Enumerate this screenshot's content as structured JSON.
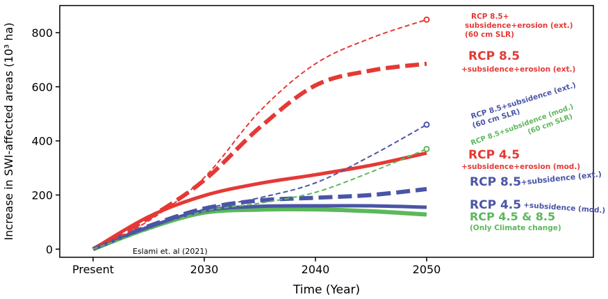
{
  "chart_data": {
    "type": "line",
    "title": "",
    "xlabel": "Time (Year)",
    "ylabel": "Increase in SWI-affected areas (10³ ha)",
    "xlim": [
      2017,
      2065
    ],
    "ylim": [
      -30,
      900
    ],
    "x_ticks": [
      {
        "value": 2020,
        "label": "Present"
      },
      {
        "value": 2030,
        "label": "2030"
      },
      {
        "value": 2040,
        "label": "2040"
      },
      {
        "value": 2050,
        "label": "2050"
      }
    ],
    "y_ticks": [
      {
        "value": 0,
        "label": "0"
      },
      {
        "value": 200,
        "label": "200"
      },
      {
        "value": 400,
        "label": "400"
      },
      {
        "value": 600,
        "label": "600"
      },
      {
        "value": 800,
        "label": "800"
      }
    ],
    "grid": false,
    "colors": {
      "red": "#e53935",
      "blue": "#4a55a6",
      "green": "#5bb85b"
    },
    "annotation": "Eslami et. al (2021)",
    "series": [
      {
        "id": "rcp85-sub-ero-60cm",
        "color": "#e53935",
        "dash": "short",
        "width": 2,
        "x": [
          2020,
          2025,
          2030,
          2035,
          2040,
          2045,
          2050
        ],
        "y": [
          0,
          105,
          265,
          510,
          685,
          780,
          848
        ],
        "label_lines": [
          "RCP 8.5+",
          "subsidence+erosion (ext.)",
          "(60 cm SLR)"
        ]
      },
      {
        "id": "rcp85-sub-ero",
        "color": "#e53935",
        "dash": "long",
        "width": 6,
        "x": [
          2020,
          2025,
          2030,
          2035,
          2040,
          2045,
          2050
        ],
        "y": [
          0,
          115,
          255,
          450,
          605,
          660,
          685
        ],
        "label_lines": [
          "RCP 8.5",
          "+subsidence+erosion (ext.)"
        ]
      },
      {
        "id": "rcp85-sub-60cm",
        "color": "#4a55a6",
        "dash": "short",
        "width": 2,
        "x": [
          2020,
          2025,
          2030,
          2035,
          2040,
          2045,
          2050
        ],
        "y": [
          0,
          75,
          148,
          190,
          245,
          345,
          460
        ],
        "label_lines": [
          "RCP 8.5+subsidence (ext.)",
          "(60 cm SLR)"
        ]
      },
      {
        "id": "rcp85-sub-mod-60cm",
        "color": "#5bb85b",
        "dash": "short",
        "width": 2,
        "x": [
          2020,
          2025,
          2030,
          2035,
          2040,
          2045,
          2050
        ],
        "y": [
          0,
          72,
          140,
          170,
          210,
          285,
          370
        ],
        "label_lines": [
          "RCP 8.5+subsidence (mod.)",
          "(60 cm SLR)"
        ]
      },
      {
        "id": "rcp45-sub-ero",
        "color": "#e53935",
        "dash": "solid",
        "width": 5,
        "x": [
          2020,
          2025,
          2030,
          2035,
          2040,
          2045,
          2050
        ],
        "y": [
          0,
          120,
          198,
          243,
          275,
          310,
          355
        ],
        "label_lines": [
          "RCP 4.5",
          "+subsidence+erosion (mod.)"
        ]
      },
      {
        "id": "rcp85-sub",
        "color": "#4a55a6",
        "dash": "long",
        "width": 6,
        "x": [
          2020,
          2025,
          2030,
          2035,
          2040,
          2045,
          2050
        ],
        "y": [
          0,
          85,
          150,
          180,
          190,
          200,
          222
        ],
        "label_lines": [
          "RCP 8.5",
          "+subsidence (ext.)"
        ]
      },
      {
        "id": "rcp45-sub",
        "color": "#4a55a6",
        "dash": "solid",
        "width": 5,
        "x": [
          2020,
          2025,
          2030,
          2035,
          2040,
          2045,
          2050
        ],
        "y": [
          0,
          82,
          142,
          158,
          160,
          160,
          155
        ],
        "label_lines": [
          "RCP 4.5",
          "+subsidence (mod.)"
        ]
      },
      {
        "id": "climate-only",
        "color": "#5bb85b",
        "dash": "solid",
        "width": 6,
        "x": [
          2020,
          2025,
          2030,
          2035,
          2040,
          2045,
          2050
        ],
        "y": [
          0,
          78,
          135,
          146,
          147,
          140,
          128
        ],
        "label_lines": [
          "RCP 4.5 & 8.5",
          "(Only Climate change)"
        ]
      }
    ]
  }
}
